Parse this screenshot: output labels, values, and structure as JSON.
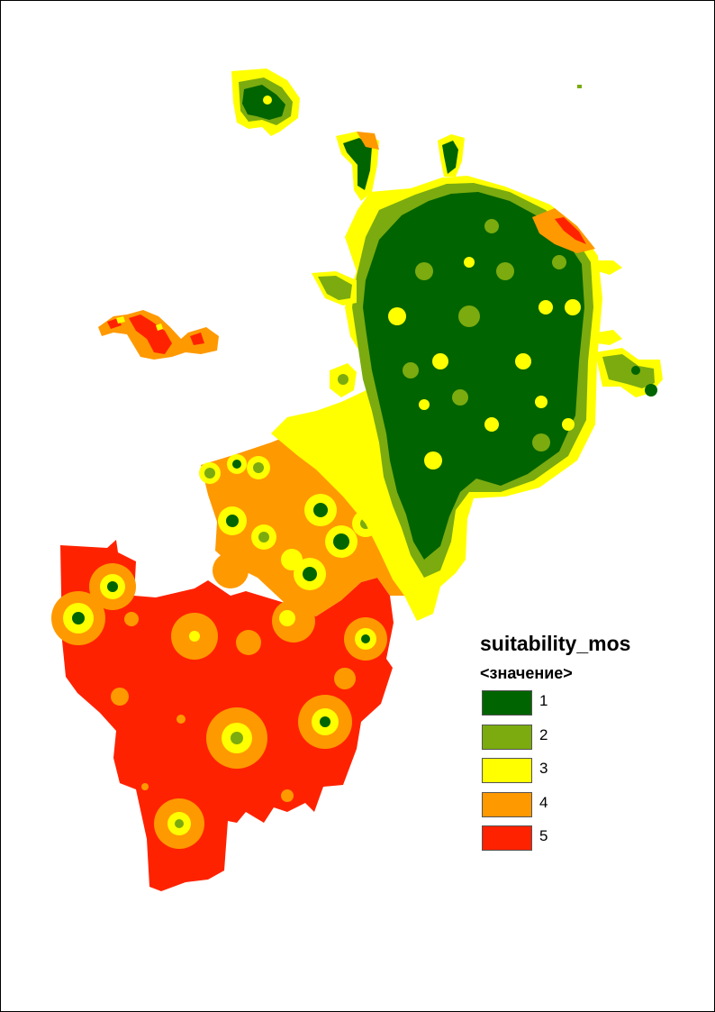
{
  "map": {
    "palette": {
      "1": "#006400",
      "2": "#7bab0f",
      "3": "#ffff00",
      "4": "#ff9900",
      "5": "#ff2200"
    }
  },
  "legend": {
    "title": "suitability_mos",
    "subtitle": "<значение>",
    "items": [
      {
        "label": "1",
        "color": "#006400"
      },
      {
        "label": "2",
        "color": "#7bab0f"
      },
      {
        "label": "3",
        "color": "#ffff00"
      },
      {
        "label": "4",
        "color": "#ff9900"
      },
      {
        "label": "5",
        "color": "#ff2200"
      }
    ]
  }
}
